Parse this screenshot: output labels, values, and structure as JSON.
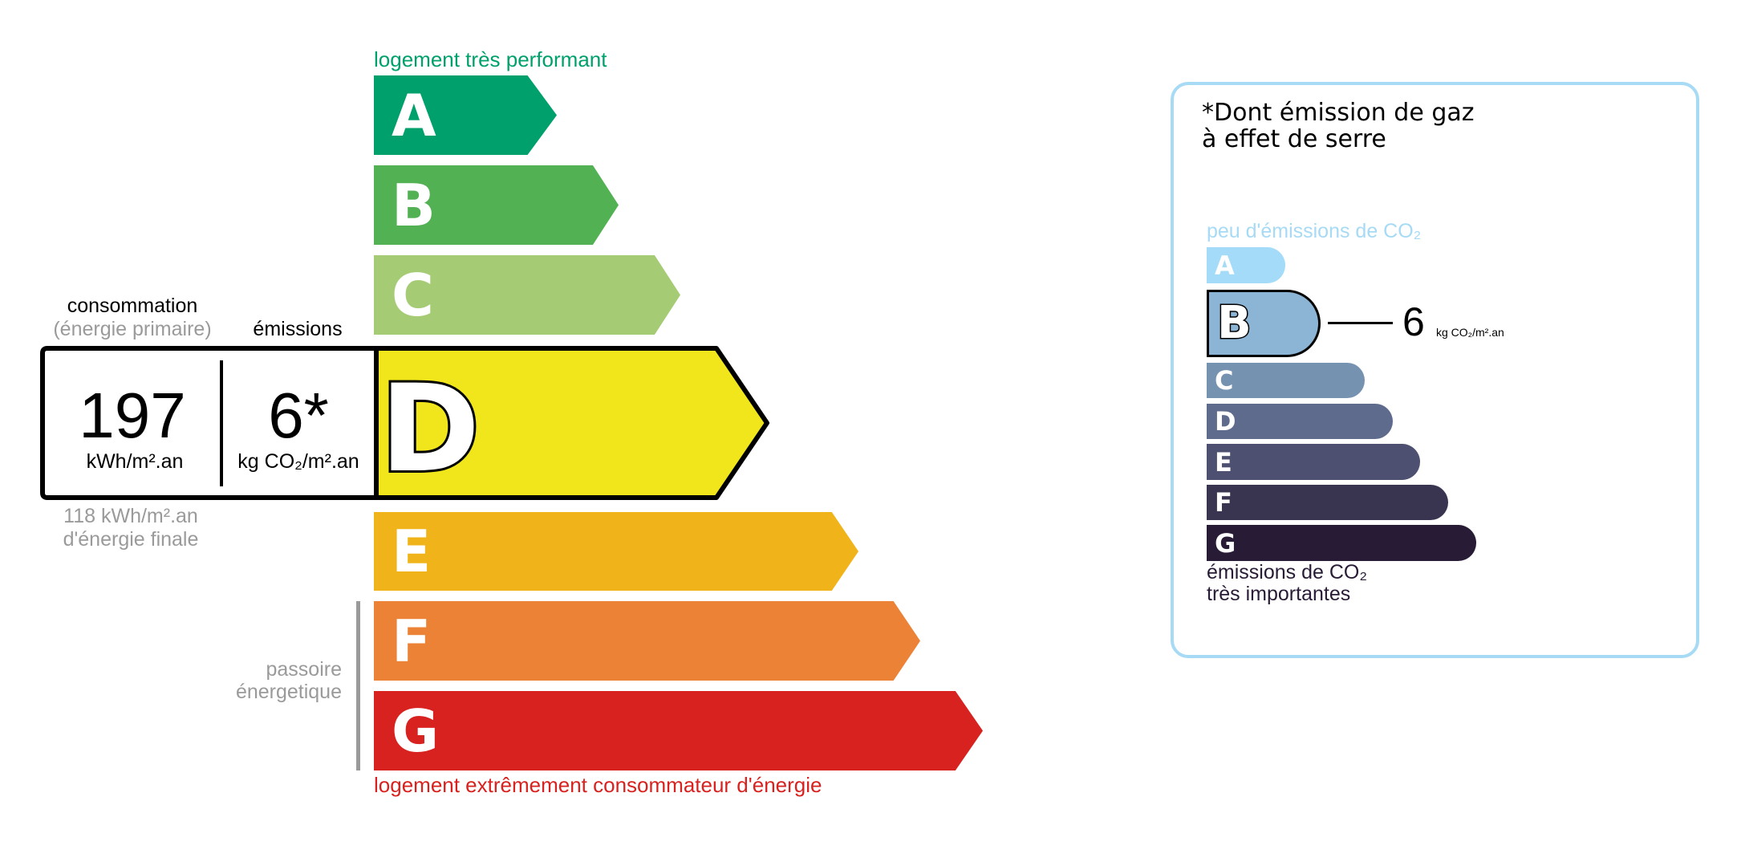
{
  "energy": {
    "top_label": "logement très performant",
    "bottom_label": "logement extrêmement consommateur d'énergie",
    "passoire_label_1": "passoire",
    "passoire_label_2": "énergetique",
    "classes": [
      {
        "letter": "A",
        "color": "#00a06d"
      },
      {
        "letter": "B",
        "color": "#52b153"
      },
      {
        "letter": "C",
        "color": "#a5cc74"
      },
      {
        "letter": "D",
        "color": "#f0e61b"
      },
      {
        "letter": "E",
        "color": "#f0b41a"
      },
      {
        "letter": "F",
        "color": "#eb8235"
      },
      {
        "letter": "G",
        "color": "#d7221f"
      }
    ],
    "current_class": "D",
    "consumption_heading": "consommation",
    "consumption_subheading": "(énergie primaire)",
    "emissions_heading": "émissions",
    "consumption_value": "197",
    "consumption_unit": "kWh/m².an",
    "emissions_value": "6*",
    "emissions_unit": "kg CO₂/m².an",
    "final_energy_value": "118 kWh/m².an",
    "final_energy_label": "d'énergie finale"
  },
  "ghg": {
    "title_line1": "*Dont émission de gaz",
    "title_line2": "à effet de serre",
    "top_label": "peu d'émissions de CO₂",
    "bottom_label_1": "émissions de CO₂",
    "bottom_label_2": "très importantes",
    "border_color": "#a6daf5",
    "classes": [
      {
        "letter": "A",
        "color": "#a4dbf8"
      },
      {
        "letter": "B",
        "color": "#8cb4d4"
      },
      {
        "letter": "C",
        "color": "#7692b1"
      },
      {
        "letter": "D",
        "color": "#5e6b8d"
      },
      {
        "letter": "E",
        "color": "#4d5071"
      },
      {
        "letter": "F",
        "color": "#393551"
      },
      {
        "letter": "G",
        "color": "#281b35"
      }
    ],
    "current_class": "B",
    "value": "6",
    "unit": "kg CO₂/m².an"
  }
}
